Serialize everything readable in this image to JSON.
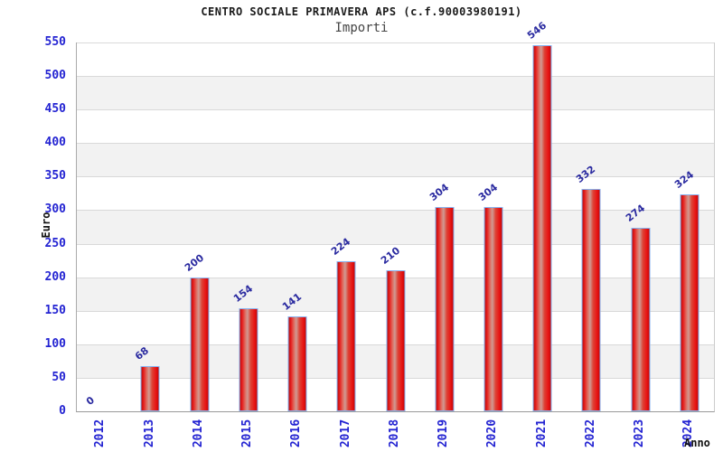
{
  "header": {
    "title": "CENTRO SOCIALE PRIMAVERA APS (c.f.90003980191)",
    "subtitle": "Importi"
  },
  "chart_data": {
    "type": "bar",
    "title": "CENTRO SOCIALE PRIMAVERA APS (c.f.90003980191)",
    "subtitle": "Importi",
    "categories": [
      "2012",
      "2013",
      "2014",
      "2015",
      "2016",
      "2017",
      "2018",
      "2019",
      "2020",
      "2021",
      "2022",
      "2023",
      "2024"
    ],
    "values": [
      0,
      68,
      200,
      154,
      141,
      224,
      210,
      304,
      304,
      546,
      332,
      274,
      324
    ],
    "xlabel": "Anno",
    "ylabel": "Euro",
    "ylim": [
      0,
      550
    ],
    "ytick_step": 50,
    "grid": true,
    "legend": "none",
    "colors": {
      "bar_fill": "#e01818",
      "bar_border": "#86b2f0",
      "value_label": "#2a2aa0",
      "tick_label": "#2323d2",
      "band_even": "#ffffff",
      "band_odd": "#f2f2f2",
      "gridline": "#d9d9d9"
    }
  }
}
